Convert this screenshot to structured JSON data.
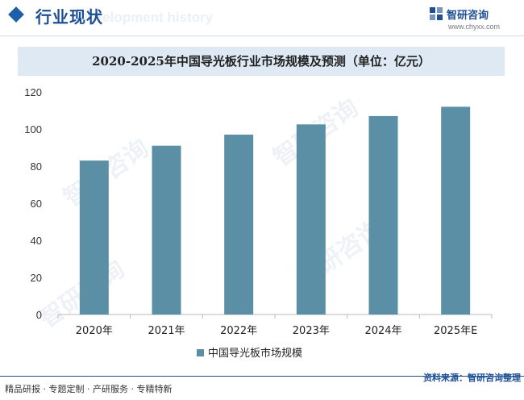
{
  "header": {
    "title": "行业现状",
    "watermark": "Development history",
    "logo_name": "智研咨询",
    "logo_url": "www.chyxx.com"
  },
  "colors": {
    "bar": "#5b8fa6",
    "accent": "#1d4f94",
    "band": "#dfe9f4"
  },
  "chart_data": {
    "type": "bar",
    "title": "2020-2025年中国导光板行业市场规模及预测（单位：亿元）",
    "categories": [
      "2020年",
      "2021年",
      "2022年",
      "2023年",
      "2024年",
      "2025年E"
    ],
    "series": [
      {
        "name": "中国导光板市场规模",
        "values": [
          83,
          91,
          97,
          102.5,
          107,
          112
        ]
      }
    ],
    "yticks": [
      0,
      20,
      40,
      60,
      80,
      100,
      120
    ],
    "ylim": [
      0,
      120
    ],
    "grid": false,
    "legend": "bottom-center"
  },
  "footer": {
    "left": "精品研报 · 专题定制 · 产研服务 · 专精特新",
    "source": "资料来源：智研咨询整理"
  },
  "watermark_text": "智研咨询"
}
